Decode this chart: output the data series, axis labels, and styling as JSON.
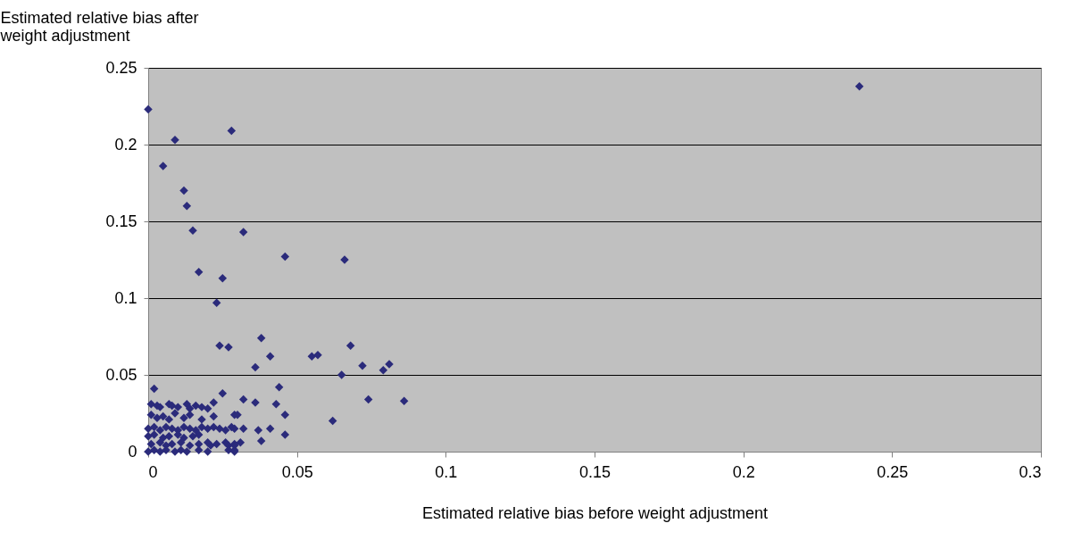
{
  "chart_data": {
    "type": "scatter",
    "xlabel": "Estimated relative bias before weight adjustment",
    "ylabel": "Estimated relative bias after weight adjustment",
    "xlim": [
      0,
      0.3
    ],
    "xticks": [
      0,
      0.05,
      0.1,
      0.15,
      0.2,
      0.25,
      0.3
    ],
    "ylim": [
      0,
      0.25
    ],
    "yticks": [
      0,
      0.05,
      0.1,
      0.15,
      0.2,
      0.25
    ],
    "grid": "y",
    "marker": "diamond",
    "series": [
      {
        "color": "#2b2b7b",
        "x": [
          0,
          0.009,
          0.005,
          0.028,
          0.012,
          0.013,
          0.015,
          0.032,
          0.017,
          0.046,
          0.066,
          0.025,
          0.023,
          0.024,
          0.027,
          0.038,
          0.068,
          0.041,
          0.036,
          0.055,
          0.057,
          0.072,
          0.081,
          0.079,
          0.065,
          0.086,
          0.074,
          0.062,
          0.044,
          0.032,
          0.036,
          0.043,
          0.046,
          0.046,
          0.041,
          0.037,
          0.038,
          0.002,
          0.025,
          0.022,
          0.029,
          0.03,
          0.032,
          0.029,
          0.029,
          0.239,
          0.001,
          0.003,
          0.004,
          0.007,
          0.008,
          0.01,
          0.013,
          0.014,
          0.016,
          0.018,
          0.02,
          0.001,
          0.003,
          0.005,
          0.007,
          0.009,
          0.012,
          0.014,
          0.018,
          0.022,
          0,
          0.002,
          0.004,
          0.006,
          0.008,
          0.01,
          0.012,
          0.014,
          0.016,
          0.018,
          0.02,
          0.022,
          0.024,
          0.026,
          0.028,
          0.029,
          0,
          0.002,
          0.005,
          0.007,
          0.01,
          0.012,
          0.015,
          0.017,
          0.001,
          0.004,
          0.006,
          0.008,
          0.011,
          0.014,
          0.017,
          0.02,
          0.021,
          0.023,
          0.026,
          0.027,
          0.029,
          0.031,
          0,
          0.002,
          0.004,
          0.006,
          0.009,
          0.011,
          0.013,
          0.017,
          0.02,
          0.027,
          0.029
        ],
        "values": [
          0.223,
          0.203,
          0.186,
          0.209,
          0.17,
          0.16,
          0.144,
          0.143,
          0.117,
          0.127,
          0.125,
          0.113,
          0.097,
          0.069,
          0.068,
          0.074,
          0.069,
          0.062,
          0.055,
          0.062,
          0.063,
          0.056,
          0.057,
          0.053,
          0.05,
          0.033,
          0.034,
          0.02,
          0.042,
          0.034,
          0.032,
          0.031,
          0.024,
          0.011,
          0.015,
          0.014,
          0.007,
          0.041,
          0.038,
          0.032,
          0.024,
          0.024,
          0.015,
          0.004,
          0.001,
          0.238,
          0.031,
          0.03,
          0.029,
          0.031,
          0.03,
          0.029,
          0.031,
          0.028,
          0.03,
          0.029,
          0.028,
          0.024,
          0.022,
          0.023,
          0.021,
          0.025,
          0.022,
          0.024,
          0.021,
          0.023,
          0.015,
          0.016,
          0.014,
          0.016,
          0.015,
          0.014,
          0.016,
          0.015,
          0.014,
          0.016,
          0.015,
          0.016,
          0.015,
          0.014,
          0.016,
          0.015,
          0.01,
          0.011,
          0.009,
          0.01,
          0.011,
          0.009,
          0.01,
          0.011,
          0.005,
          0.006,
          0.004,
          0.005,
          0.006,
          0.004,
          0.005,
          0.006,
          0.004,
          0.005,
          0.006,
          0.004,
          0.005,
          0.006,
          0,
          0.001,
          0,
          0.001,
          0,
          0.001,
          0,
          0.001,
          0,
          0.001,
          0
        ]
      }
    ]
  }
}
